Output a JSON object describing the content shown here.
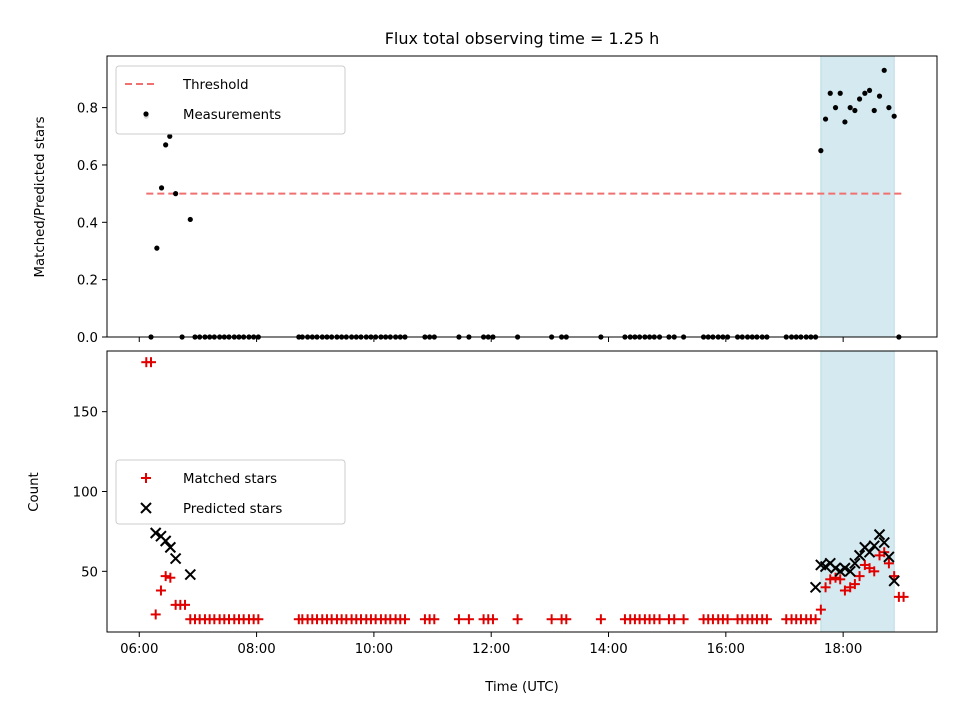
{
  "chart_data": [
    {
      "type": "scatter",
      "title": "Flux total observing time = 1.25 h",
      "xlabel": "",
      "ylabel": "Matched/Predicted stars",
      "xlim": [
        5.45,
        19.6
      ],
      "ylim": [
        0,
        0.98
      ],
      "yticks": [
        0.0,
        0.2,
        0.4,
        0.6,
        0.8
      ],
      "ytick_labels": [
        "0.0",
        "0.2",
        "0.4",
        "0.6",
        "0.8"
      ],
      "xticks": [
        6,
        8,
        10,
        12,
        14,
        16,
        18
      ],
      "xtick_labels": [
        "",
        "",
        "",
        "",
        "",
        "",
        ""
      ],
      "legend_position": "top-left",
      "highlight_span": {
        "x0": 17.62,
        "x1": 18.87,
        "color": "#d4eaf0"
      },
      "threshold": {
        "name": "Threshold",
        "value": 0.5,
        "x0": 6.12,
        "x1": 19.0,
        "color": "#f07070"
      },
      "series": [
        {
          "name": "Measurements",
          "color": "#000000",
          "marker": "dot",
          "x": [
            6.12,
            6.2,
            6.3,
            6.38,
            6.45,
            6.52,
            6.62,
            6.73,
            6.87,
            6.95,
            7.03,
            7.12,
            7.2,
            7.28,
            7.37,
            7.45,
            7.53,
            7.62,
            7.7,
            7.78,
            7.87,
            7.95,
            8.03,
            8.72,
            8.78,
            8.87,
            8.95,
            9.03,
            9.12,
            9.2,
            9.28,
            9.37,
            9.45,
            9.53,
            9.62,
            9.7,
            9.78,
            9.87,
            9.95,
            10.03,
            10.12,
            10.2,
            10.28,
            10.37,
            10.45,
            10.53,
            10.87,
            10.95,
            11.03,
            11.45,
            11.62,
            11.87,
            11.95,
            12.03,
            12.45,
            13.03,
            13.2,
            13.28,
            13.87,
            14.28,
            14.37,
            14.45,
            14.53,
            14.62,
            14.7,
            14.78,
            14.87,
            15.03,
            15.12,
            15.28,
            15.62,
            15.7,
            15.78,
            15.87,
            15.95,
            16.03,
            16.2,
            16.28,
            16.37,
            16.45,
            16.53,
            16.62,
            16.7,
            17.03,
            17.12,
            17.2,
            17.28,
            17.37,
            17.45,
            17.53,
            17.62,
            17.7,
            17.78,
            17.87,
            17.95,
            18.03,
            18.12,
            18.2,
            18.28,
            18.37,
            18.45,
            18.53,
            18.62,
            18.7,
            18.78,
            18.87,
            18.95
          ],
          "y": [
            0.77,
            0.0,
            0.31,
            0.52,
            0.67,
            0.7,
            0.5,
            0.0,
            0.41,
            0.0,
            0.0,
            0.0,
            0.0,
            0.0,
            0.0,
            0.0,
            0.0,
            0.0,
            0.0,
            0.0,
            0.0,
            0.0,
            0.0,
            0.0,
            0.0,
            0.0,
            0.0,
            0.0,
            0.0,
            0.0,
            0.0,
            0.0,
            0.0,
            0.0,
            0.0,
            0.0,
            0.0,
            0.0,
            0.0,
            0.0,
            0.0,
            0.0,
            0.0,
            0.0,
            0.0,
            0.0,
            0.0,
            0.0,
            0.0,
            0.0,
            0.0,
            0.0,
            0.0,
            0.0,
            0.0,
            0.0,
            0.0,
            0.0,
            0.0,
            0.0,
            0.0,
            0.0,
            0.0,
            0.0,
            0.0,
            0.0,
            0.0,
            0.0,
            0.0,
            0.0,
            0.0,
            0.0,
            0.0,
            0.0,
            0.0,
            0.0,
            0.0,
            0.0,
            0.0,
            0.0,
            0.0,
            0.0,
            0.0,
            0.0,
            0.0,
            0.0,
            0.0,
            0.0,
            0.0,
            0.0,
            0.65,
            0.76,
            0.85,
            0.8,
            0.85,
            0.75,
            0.8,
            0.79,
            0.83,
            0.85,
            0.86,
            0.79,
            0.84,
            0.93,
            0.8,
            0.77,
            0.0
          ]
        }
      ]
    },
    {
      "type": "scatter",
      "title": "",
      "xlabel": "Time (UTC)",
      "ylabel": "Count",
      "xlim": [
        5.45,
        19.6
      ],
      "ylim": [
        12,
        188
      ],
      "yticks": [
        50,
        100,
        150
      ],
      "ytick_labels": [
        "50",
        "100",
        "150"
      ],
      "xticks": [
        6,
        8,
        10,
        12,
        14,
        16,
        18
      ],
      "xtick_labels": [
        "06:00",
        "08:00",
        "10:00",
        "12:00",
        "14:00",
        "16:00",
        "18:00"
      ],
      "legend_position": "center-left",
      "highlight_span": {
        "x0": 17.62,
        "x1": 18.87,
        "color": "#d4eaf0"
      },
      "series": [
        {
          "name": "Matched stars",
          "color": "#e00000",
          "marker": "plus",
          "x": [
            6.12,
            6.2,
            6.28,
            6.37,
            6.45,
            6.53,
            6.62,
            6.7,
            6.78,
            6.87,
            6.95,
            7.03,
            7.12,
            7.2,
            7.28,
            7.37,
            7.45,
            7.53,
            7.62,
            7.7,
            7.78,
            7.87,
            7.95,
            8.03,
            8.72,
            8.78,
            8.87,
            8.95,
            9.03,
            9.12,
            9.2,
            9.28,
            9.37,
            9.45,
            9.53,
            9.62,
            9.7,
            9.78,
            9.87,
            9.95,
            10.03,
            10.12,
            10.2,
            10.28,
            10.37,
            10.45,
            10.53,
            10.87,
            10.95,
            11.03,
            11.45,
            11.62,
            11.87,
            11.95,
            12.03,
            12.45,
            13.03,
            13.2,
            13.28,
            13.87,
            14.28,
            14.37,
            14.45,
            14.53,
            14.62,
            14.7,
            14.78,
            14.87,
            15.03,
            15.12,
            15.28,
            15.62,
            15.7,
            15.78,
            15.87,
            15.95,
            16.03,
            16.2,
            16.28,
            16.37,
            16.45,
            16.53,
            16.62,
            16.7,
            17.03,
            17.12,
            17.2,
            17.28,
            17.37,
            17.45,
            17.53,
            17.62,
            17.7,
            17.78,
            17.87,
            17.95,
            18.03,
            18.12,
            18.2,
            18.28,
            18.37,
            18.45,
            18.53,
            18.62,
            18.7,
            18.78,
            18.87,
            18.95,
            19.03
          ],
          "y": [
            181,
            181,
            23,
            38,
            47,
            46,
            29,
            29,
            29,
            20,
            20,
            20,
            20,
            20,
            20,
            20,
            20,
            20,
            20,
            20,
            20,
            20,
            20,
            20,
            20,
            20,
            20,
            20,
            20,
            20,
            20,
            20,
            20,
            20,
            20,
            20,
            20,
            20,
            20,
            20,
            20,
            20,
            20,
            20,
            20,
            20,
            20,
            20,
            20,
            20,
            20,
            20,
            20,
            20,
            20,
            20,
            20,
            20,
            20,
            20,
            20,
            20,
            20,
            20,
            20,
            20,
            20,
            20,
            20,
            20,
            20,
            20,
            20,
            20,
            20,
            20,
            20,
            20,
            20,
            20,
            20,
            20,
            20,
            20,
            20,
            20,
            20,
            20,
            20,
            20,
            20,
            26,
            40,
            45,
            46,
            45,
            38,
            40,
            42,
            47,
            54,
            52,
            50,
            60,
            62,
            55,
            47,
            34,
            34
          ]
        },
        {
          "name": "Predicted stars",
          "color": "#000000",
          "marker": "x",
          "x": [
            6.28,
            6.37,
            6.45,
            6.53,
            6.62,
            6.87,
            17.53,
            17.62,
            17.7,
            17.78,
            17.87,
            17.95,
            18.03,
            18.12,
            18.2,
            18.28,
            18.37,
            18.45,
            18.53,
            18.62,
            18.7,
            18.78,
            18.87
          ],
          "y": [
            74,
            72,
            69,
            65,
            58,
            48,
            40,
            54,
            53,
            55,
            52,
            50,
            52,
            50,
            55,
            60,
            65,
            62,
            66,
            73,
            68,
            59,
            44
          ]
        }
      ]
    }
  ]
}
